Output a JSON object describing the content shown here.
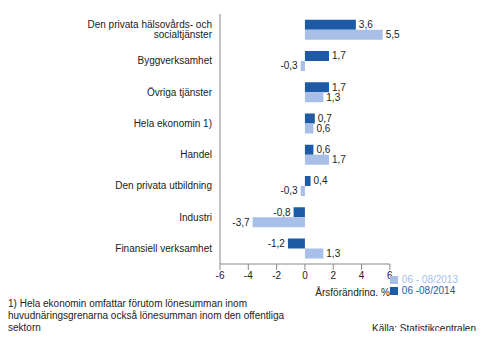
{
  "chart_data": {
    "type": "bar",
    "orientation": "horizontal",
    "categories": [
      "Den privata hälsovårds- och socialtjänster",
      "Byggverksamhet",
      "Övriga tjänster",
      "Hela ekonomin 1)",
      "Handel",
      "Den privata utbildning",
      "Industri",
      "Finansiell verksamhet"
    ],
    "series": [
      {
        "name": "06 -08/2014",
        "color": "#1f5aa6",
        "values": [
          3.6,
          1.7,
          1.7,
          0.7,
          0.6,
          0.4,
          -0.8,
          -1.2
        ],
        "value_labels": [
          "3,6",
          "1,7",
          "1,7",
          "0,7",
          "0,6",
          "0,4",
          "-0,8",
          "-1,2"
        ]
      },
      {
        "name": "06 - 08/2013",
        "color": "#a8bfe8",
        "values": [
          5.5,
          -0.3,
          1.3,
          0.6,
          1.7,
          -0.3,
          -3.7,
          1.3
        ],
        "value_labels": [
          "5,5",
          "-0,3",
          "1,3",
          "0,6",
          "1,7",
          "-0,3",
          "-3,7",
          "1,3"
        ]
      }
    ],
    "x_label": "Årsförändring, %",
    "xlim": [
      -6,
      6
    ],
    "xticks": [
      -6,
      -4,
      -2,
      0,
      2,
      4,
      6
    ],
    "grid": false,
    "data_labels": true,
    "legend": "bottom-right",
    "notes": [
      "1) Hela ekonomin omfattar förutom lönesumman inom huvudnäringsgrenarna också lönesumman inom den offentliga sektorn",
      "Källa: Statistikcentralen"
    ]
  }
}
